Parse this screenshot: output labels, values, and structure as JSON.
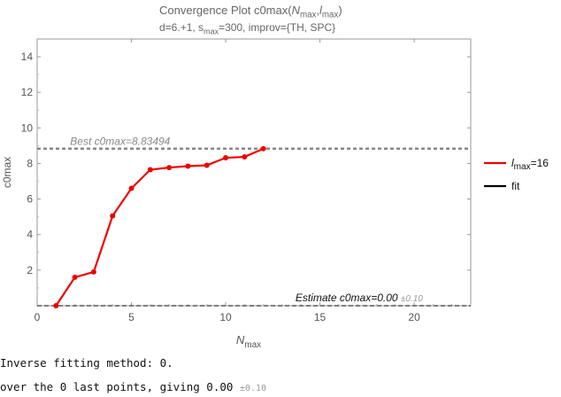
{
  "title": {
    "line1_prefix": "Convergence Plot c0max(",
    "line1_n": "N",
    "line1_nsub": "max",
    "line1_sep": ",",
    "line1_l": "l",
    "line1_lsub": "max",
    "line1_suffix": ")",
    "line2_prefix": "d=6.+1, s",
    "line2_sub": "max",
    "line2_suffix": "=300, improv={TH, SPC}"
  },
  "chart_data": {
    "type": "line",
    "ylabel": "c0max",
    "xlabel_main": "N",
    "xlabel_sub": "max",
    "xlim": [
      0,
      23
    ],
    "ylim": [
      0,
      15
    ],
    "x_ticks": [
      0,
      5,
      10,
      15,
      20
    ],
    "y_ticks": [
      2,
      4,
      6,
      8,
      10,
      12,
      14
    ],
    "series": [
      {
        "name": "l",
        "name_sub": "max",
        "name_suffix": "=16",
        "color": "#ee0000",
        "x": [
          1,
          2,
          3,
          4,
          5,
          6,
          7,
          8,
          9,
          10,
          11,
          12
        ],
        "y": [
          0.0,
          1.6,
          1.9,
          5.05,
          6.6,
          7.65,
          7.77,
          7.85,
          7.9,
          8.32,
          8.37,
          8.83
        ]
      }
    ],
    "fit_legend": "fit",
    "fit_color": "#000000",
    "best_line": {
      "y": 8.83494,
      "label": "Best c0max=8.83494",
      "color": "#888888"
    },
    "estimate_line": {
      "y": 0.0,
      "label": "Estimate c0max=0.00",
      "pm": "±0.10",
      "color": "#555555"
    },
    "grid": false,
    "legend_position": "right"
  },
  "notes": {
    "line1": "Inverse fitting method: 0.",
    "line2_prefix": "over the 0 last points, giving 0.00 ",
    "line2_pm": "±0.10"
  }
}
